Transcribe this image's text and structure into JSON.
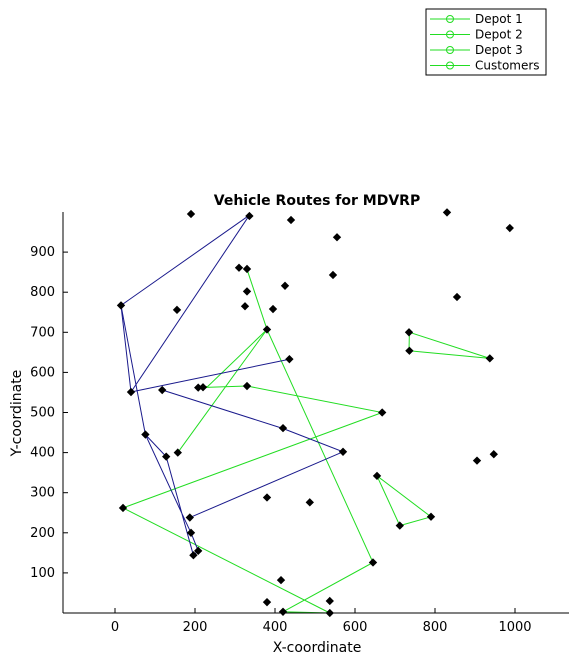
{
  "chart_data": {
    "type": "line",
    "title": "Vehicle Routes for MDVRP",
    "xlabel": "X-coordinate",
    "ylabel": "Y-coordinate",
    "xlim": [
      -130,
      1135
    ],
    "ylim": [
      0,
      1000
    ],
    "xticks": [
      0,
      200,
      400,
      600,
      800,
      1000
    ],
    "yticks": [
      100,
      200,
      300,
      400,
      500,
      600,
      700,
      800,
      900
    ],
    "grid": false,
    "legend_position": "top-right",
    "legend": [
      "Depot 1",
      "Depot 2",
      "Depot 3",
      "Customers"
    ],
    "colors": {
      "route_green": "#22dd22",
      "route_blue": "#1a1a8c",
      "point": "#000000"
    },
    "routes": [
      {
        "color": "green",
        "x": [
          330,
          380,
          232,
          208
        ],
        "y": [
          857,
          707,
          565,
          562
        ]
      },
      {
        "color": "green",
        "x": [
          20,
          668,
          330,
          208
        ],
        "y": [
          262,
          500,
          566,
          562
        ]
      },
      {
        "color": "green",
        "x": [
          157,
          380,
          645,
          420,
          537,
          20
        ],
        "y": [
          400,
          707,
          126,
          3,
          0,
          262
        ]
      },
      {
        "color": "green",
        "x": [
          735,
          736,
          937,
          735
        ],
        "y": [
          654,
          700,
          635,
          654
        ]
      },
      {
        "color": "green",
        "x": [
          655,
          712,
          790,
          655
        ],
        "y": [
          342,
          218,
          240,
          342
        ]
      },
      {
        "color": "blue",
        "x": [
          15,
          40,
          336,
          15
        ],
        "y": [
          767,
          551,
          992,
          767
        ]
      },
      {
        "color": "blue",
        "x": [
          40,
          436,
          40
        ],
        "y": [
          551,
          633,
          551
        ]
      },
      {
        "color": "blue",
        "x": [
          15,
          76,
          172,
          190,
          208,
          196,
          128,
          76
        ],
        "y": [
          767,
          445,
          238,
          200,
          155,
          144,
          390,
          445
        ]
      },
      {
        "color": "blue",
        "x": [
          118,
          420,
          570,
          187
        ],
        "y": [
          556,
          460,
          402,
          238
        ]
      }
    ],
    "points": {
      "x": [
        190,
        336,
        440,
        830,
        987,
        555,
        310,
        330,
        425,
        545,
        330,
        325,
        855,
        15,
        155,
        395,
        380,
        735,
        736,
        937,
        436,
        40,
        118,
        208,
        220,
        330,
        668,
        420,
        76,
        157,
        570,
        128,
        905,
        947,
        655,
        380,
        487,
        790,
        712,
        20,
        187,
        190,
        208,
        196,
        645,
        415,
        380,
        537,
        420,
        537
      ],
      "y": [
        995,
        990,
        980,
        999,
        960,
        937,
        861,
        858,
        816,
        843,
        802,
        765,
        788,
        767,
        756,
        758,
        707,
        700,
        654,
        635,
        633,
        551,
        556,
        562,
        563,
        566,
        500,
        461,
        445,
        400,
        402,
        390,
        380,
        396,
        342,
        288,
        276,
        240,
        218,
        262,
        238,
        200,
        155,
        144,
        126,
        82,
        27,
        30,
        3,
        0
      ]
    }
  }
}
